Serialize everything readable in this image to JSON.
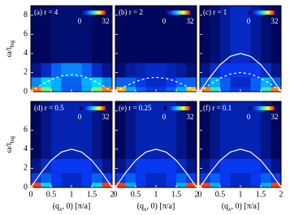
{
  "chart_data": [
    {
      "type": "heatmap",
      "title": "(a) r = 4",
      "ylabel": [
        "ω/t",
        "leg"
      ],
      "xlim": [
        0,
        2
      ],
      "ylim": [
        0,
        9
      ],
      "xticks": [
        0,
        0.5,
        1,
        1.5,
        2
      ],
      "yticks": [
        0,
        2,
        4,
        6,
        8
      ],
      "clim": [
        0,
        32
      ],
      "colormap": [
        "#000048",
        "#0838f0",
        "#00d8ff",
        "#ffff00",
        "#ff0000"
      ],
      "xbins": [
        0,
        0.25,
        0.5,
        0.75,
        1,
        1.25,
        1.5,
        1.75,
        2
      ],
      "ybins": [
        0,
        0.5,
        1.5,
        3,
        9
      ],
      "z": [
        [
          28,
          20,
          14,
          10,
          10,
          14,
          20,
          28
        ],
        [
          12,
          16,
          14,
          10,
          10,
          14,
          16,
          12
        ],
        [
          3,
          6,
          10,
          12,
          12,
          10,
          6,
          3
        ],
        [
          1,
          1,
          2,
          2,
          2,
          2,
          1,
          1
        ]
      ],
      "x": [
        0,
        0.25,
        0.5,
        0.75,
        1,
        1.25,
        1.5,
        1.75,
        2
      ],
      "curves": [
        {
          "style": "dashed",
          "values": [
            0,
            0.69,
            1.27,
            1.66,
            1.8,
            1.66,
            1.27,
            0.69,
            0
          ]
        }
      ]
    },
    {
      "type": "heatmap",
      "title": "(b) r = 2",
      "xlim": [
        0,
        2
      ],
      "ylim": [
        0,
        9
      ],
      "xticks": [
        0,
        0.5,
        1,
        1.5,
        2
      ],
      "yticks": [
        0,
        2,
        4,
        6,
        8
      ],
      "clim": [
        0,
        32
      ],
      "colormap": [
        "#000048",
        "#0838f0",
        "#00d8ff",
        "#ffff00",
        "#ff0000"
      ],
      "xbins": [
        0,
        0.25,
        0.5,
        0.75,
        1,
        1.25,
        1.5,
        1.75,
        2
      ],
      "ybins": [
        0,
        0.5,
        1.5,
        3,
        9
      ],
      "z": [
        [
          26,
          14,
          10,
          8,
          8,
          10,
          14,
          26
        ],
        [
          10,
          10,
          8,
          6,
          6,
          8,
          10,
          10
        ],
        [
          2,
          4,
          5,
          6,
          6,
          5,
          4,
          2
        ],
        [
          1,
          1,
          1,
          1,
          1,
          1,
          1,
          1
        ]
      ],
      "x": [
        0,
        0.25,
        0.5,
        0.75,
        1,
        1.25,
        1.5,
        1.75,
        2
      ],
      "curves": [
        {
          "style": "dashed",
          "values": [
            0,
            0.57,
            1.06,
            1.39,
            1.5,
            1.39,
            1.06,
            0.57,
            0
          ]
        }
      ]
    },
    {
      "type": "heatmap",
      "title": "(c) r = 1",
      "xlim": [
        0,
        2
      ],
      "ylim": [
        0,
        9
      ],
      "xticks": [
        0,
        0.5,
        1,
        1.5,
        2
      ],
      "yticks": [
        0,
        2,
        4,
        6,
        8
      ],
      "clim": [
        0,
        32
      ],
      "colormap": [
        "#000048",
        "#0838f0",
        "#00d8ff",
        "#ffff00",
        "#ff0000"
      ],
      "xbins": [
        0,
        0.25,
        0.5,
        0.75,
        1,
        1.25,
        1.5,
        1.75,
        2
      ],
      "ybins": [
        0,
        0.5,
        1.5,
        3,
        9
      ],
      "z": [
        [
          28,
          18,
          10,
          8,
          8,
          10,
          18,
          28
        ],
        [
          10,
          14,
          10,
          6,
          6,
          10,
          14,
          10
        ],
        [
          3,
          6,
          8,
          8,
          8,
          8,
          6,
          3
        ],
        [
          1,
          2,
          4,
          6,
          6,
          4,
          2,
          1
        ]
      ],
      "x": [
        0,
        0.25,
        0.5,
        0.75,
        1,
        1.25,
        1.5,
        1.75,
        2
      ],
      "curves": [
        {
          "style": "solid",
          "values": [
            0,
            1.53,
            2.83,
            3.7,
            4,
            3.7,
            2.83,
            1.53,
            0
          ]
        },
        {
          "style": "dashed",
          "values": [
            0,
            0.77,
            1.41,
            1.85,
            2,
            1.85,
            1.41,
            0.77,
            0
          ]
        }
      ]
    },
    {
      "type": "heatmap",
      "title": "(d) r = 0.5",
      "ylabel": [
        "ω/t",
        "leg"
      ],
      "xlabel": [
        "(q",
        "x",
        ", 0) [π/a]"
      ],
      "xlim": [
        0,
        2
      ],
      "ylim": [
        0,
        9
      ],
      "xticks": [
        0,
        0.5,
        1,
        1.5,
        2
      ],
      "yticks": [
        0,
        2,
        4,
        6
      ],
      "clim": [
        0,
        32
      ],
      "colormap": [
        "#000048",
        "#0838f0",
        "#00d8ff",
        "#ffff00",
        "#ff0000"
      ],
      "xbins": [
        0,
        0.25,
        0.5,
        0.75,
        1,
        1.25,
        1.5,
        1.75,
        2
      ],
      "ybins": [
        0,
        0.5,
        1.5,
        3,
        9
      ],
      "z": [
        [
          30,
          16,
          8,
          6,
          6,
          8,
          16,
          30
        ],
        [
          8,
          10,
          8,
          6,
          6,
          8,
          10,
          8
        ],
        [
          3,
          6,
          8,
          8,
          8,
          8,
          6,
          3
        ],
        [
          1,
          3,
          5,
          5,
          5,
          5,
          3,
          1
        ]
      ],
      "x": [
        0,
        0.25,
        0.5,
        0.75,
        1,
        1.25,
        1.5,
        1.75,
        2
      ],
      "curves": [
        {
          "style": "solid",
          "values": [
            0,
            1.53,
            2.83,
            3.7,
            4,
            3.7,
            2.83,
            1.53,
            0
          ]
        }
      ]
    },
    {
      "type": "heatmap",
      "title": "(e) r = 0.25",
      "xlabel": [
        "(q",
        "x",
        ", 0) [π/a]"
      ],
      "xlim": [
        0,
        2
      ],
      "ylim": [
        0,
        9
      ],
      "xticks": [
        0,
        0.5,
        1,
        1.5,
        2
      ],
      "yticks": [
        0,
        2,
        4,
        6,
        8
      ],
      "clim": [
        0,
        32
      ],
      "colormap": [
        "#000048",
        "#0838f0",
        "#00d8ff",
        "#ffff00",
        "#ff0000"
      ],
      "xbins": [
        0,
        0.25,
        0.5,
        0.75,
        1,
        1.25,
        1.5,
        1.75,
        2
      ],
      "ybins": [
        0,
        0.5,
        1.5,
        3,
        9
      ],
      "z": [
        [
          30,
          14,
          8,
          6,
          6,
          8,
          14,
          30
        ],
        [
          8,
          10,
          8,
          6,
          6,
          8,
          10,
          8
        ],
        [
          3,
          6,
          8,
          8,
          8,
          8,
          6,
          3
        ],
        [
          1,
          3,
          5,
          5,
          5,
          5,
          3,
          1
        ]
      ],
      "x": [
        0,
        0.25,
        0.5,
        0.75,
        1,
        1.25,
        1.5,
        1.75,
        2
      ],
      "curves": [
        {
          "style": "solid",
          "values": [
            0,
            1.53,
            2.83,
            3.7,
            4,
            3.7,
            2.83,
            1.53,
            0
          ]
        }
      ]
    },
    {
      "type": "heatmap",
      "title": "(f) r = 0.1",
      "xlabel": [
        "(q",
        "x",
        ", 0) [π/a]"
      ],
      "xlim": [
        0,
        2
      ],
      "ylim": [
        0,
        9
      ],
      "xticks": [
        0,
        0.5,
        1,
        1.5,
        2
      ],
      "yticks": [
        0,
        2,
        4,
        6,
        8
      ],
      "clim": [
        0,
        32
      ],
      "colormap": [
        "#000048",
        "#0838f0",
        "#00d8ff",
        "#ffff00",
        "#ff0000"
      ],
      "xbins": [
        0,
        0.25,
        0.5,
        0.75,
        1,
        1.25,
        1.5,
        1.75,
        2
      ],
      "ybins": [
        0,
        0.5,
        1.5,
        3,
        9
      ],
      "z": [
        [
          30,
          14,
          8,
          6,
          6,
          8,
          14,
          30
        ],
        [
          8,
          10,
          8,
          6,
          6,
          8,
          10,
          8
        ],
        [
          3,
          6,
          8,
          8,
          8,
          8,
          6,
          3
        ],
        [
          1,
          3,
          5,
          5,
          5,
          5,
          3,
          1
        ]
      ],
      "x": [
        0,
        0.25,
        0.5,
        0.75,
        1,
        1.25,
        1.5,
        1.75,
        2
      ],
      "curves": [
        {
          "style": "solid",
          "values": [
            0,
            1.53,
            2.83,
            3.7,
            4,
            3.7,
            2.83,
            1.53,
            0
          ]
        }
      ]
    }
  ]
}
